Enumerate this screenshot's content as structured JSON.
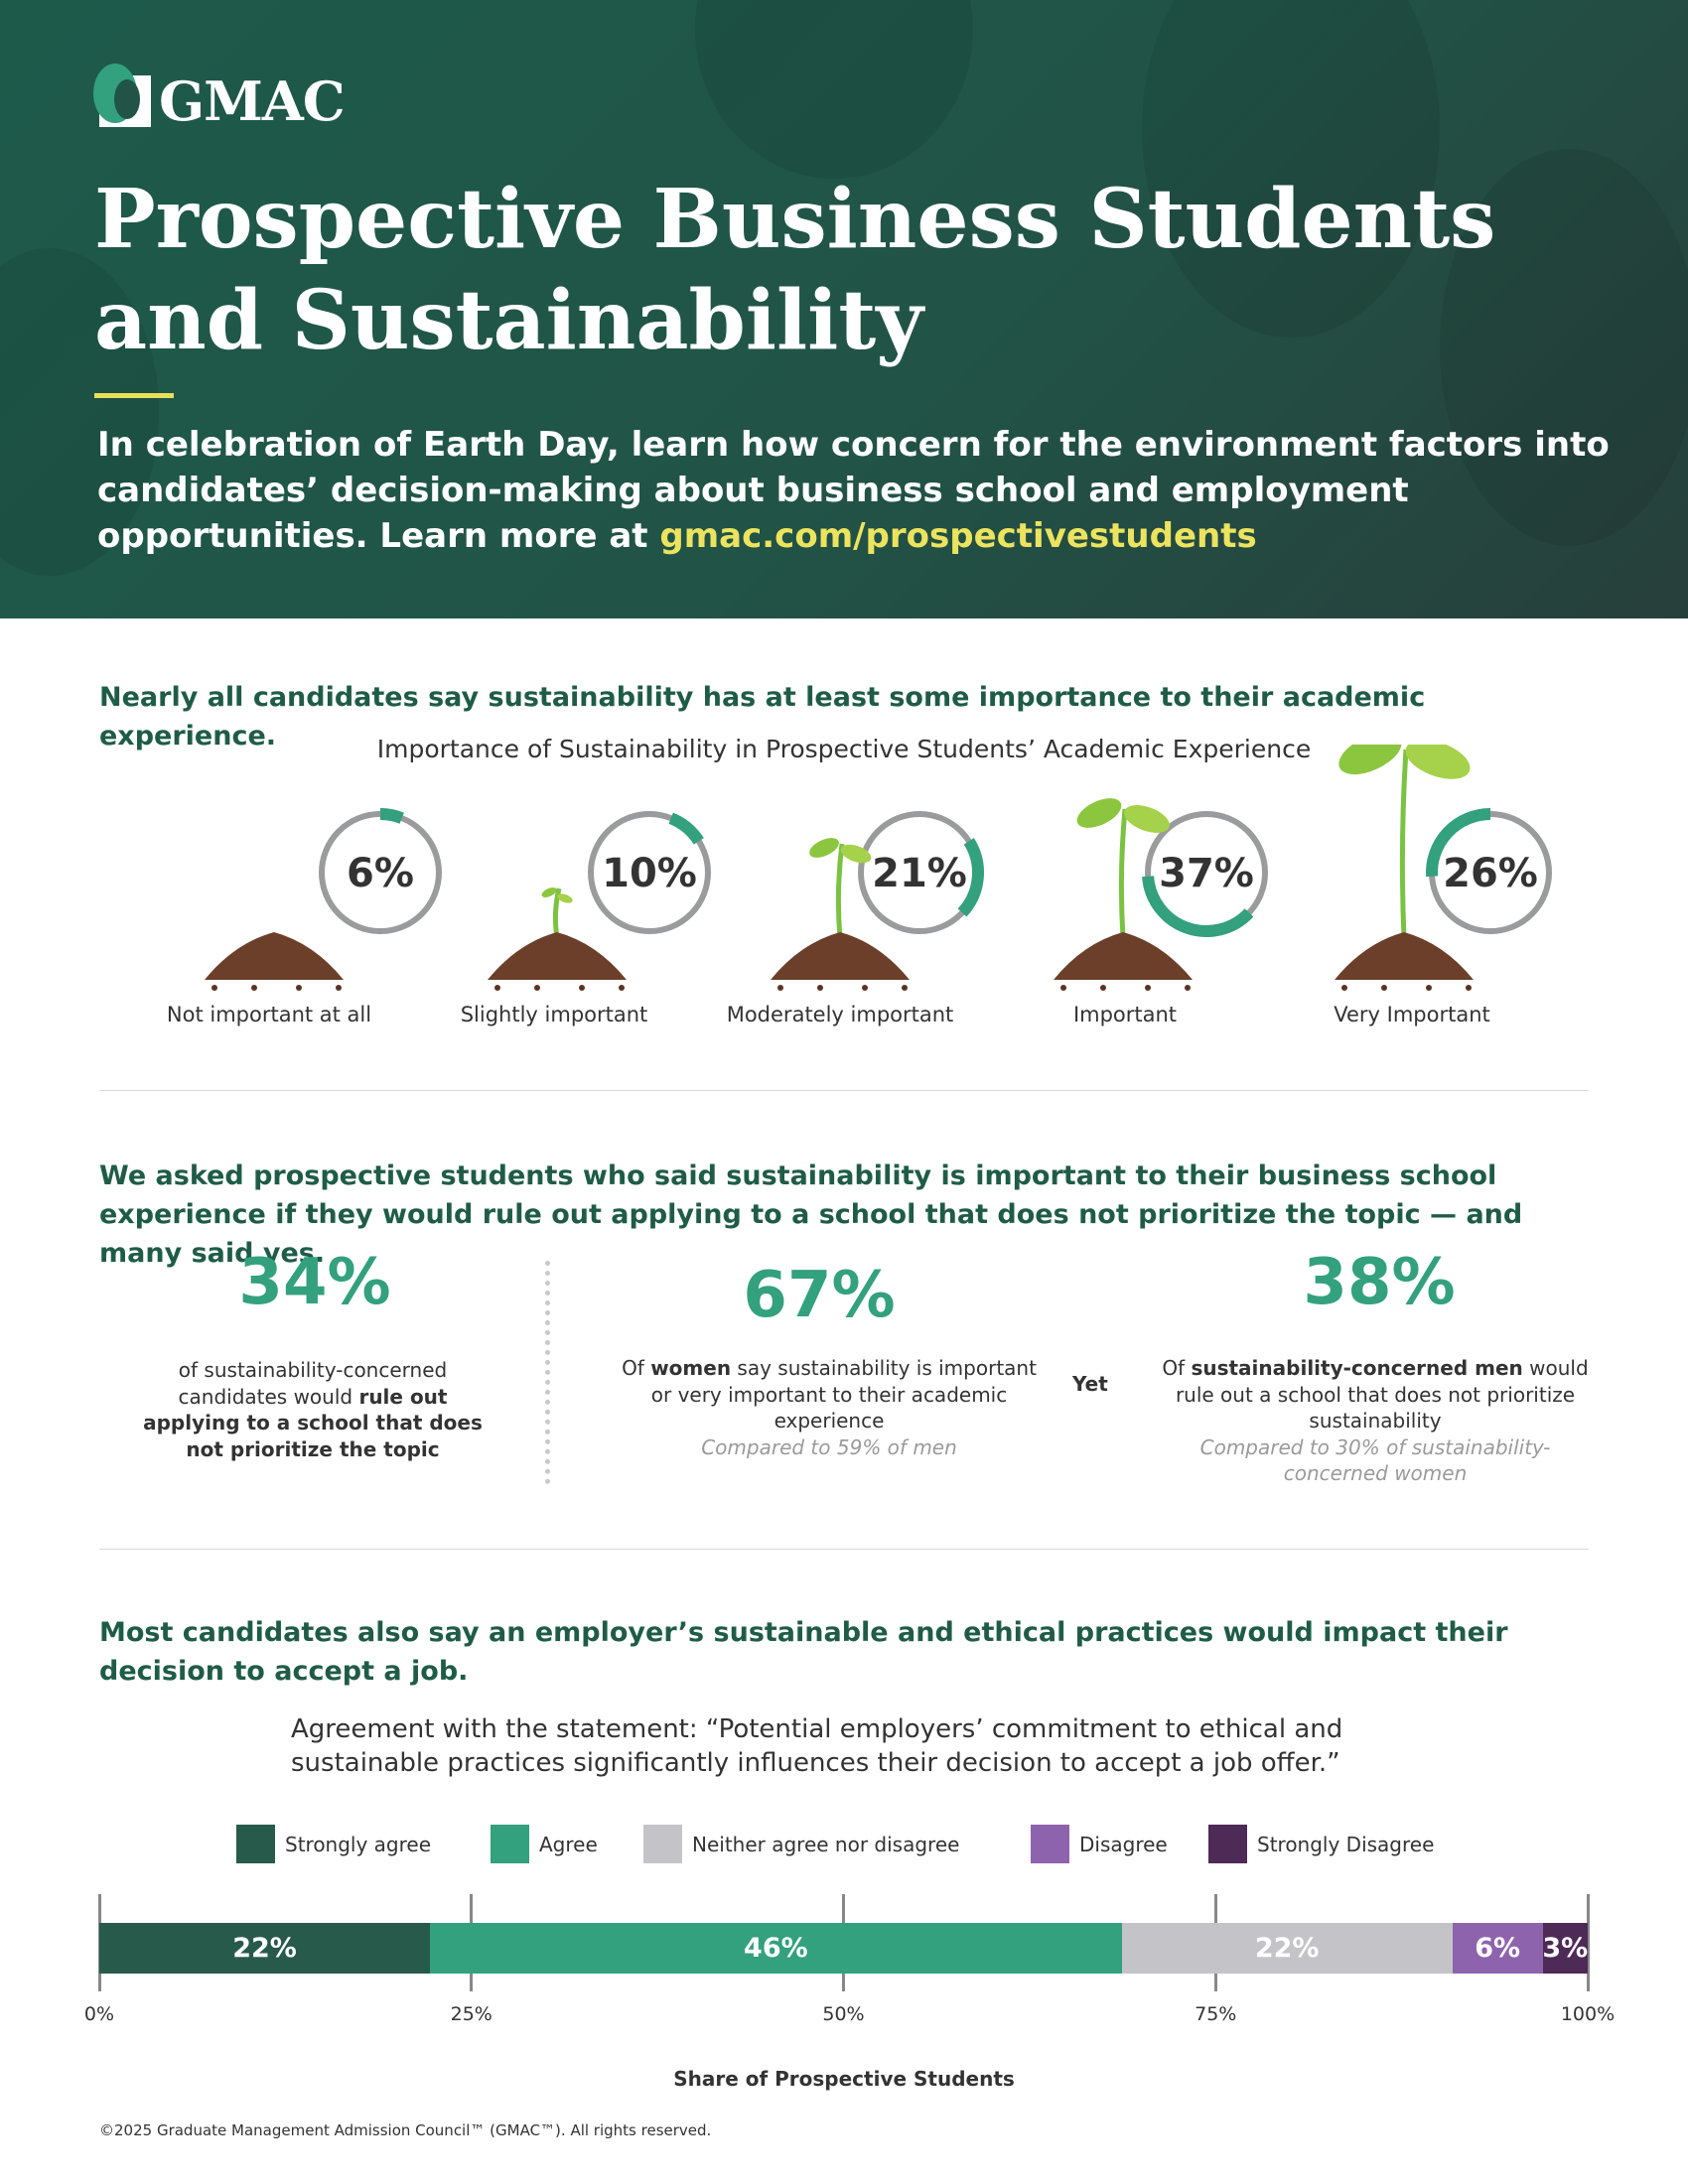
{
  "header": {
    "logo_text": "GMAC",
    "title_line1": "Prospective Business Students",
    "title_line2": "and Sustainability",
    "subtitle_text": "In celebration of Earth Day, learn how concern for the environment factors into candidates’ decision-making about business school and employment opportunities. Learn more at ",
    "subtitle_link": "gmac.com/prospectivestudents"
  },
  "section1": {
    "heading": "Nearly all candidates say sustainability has at least some importance to their academic experience.",
    "chart_title": "Importance of Sustainability in Prospective Students’ Academic Experience"
  },
  "chart_data": [
    {
      "type": "donut",
      "title": "Importance of Sustainability in Prospective Students’ Academic Experience",
      "categories": [
        "Not important at all",
        "Slightly important",
        "Moderately important",
        "Important",
        "Very Important"
      ],
      "values": [
        6,
        10,
        21,
        37,
        26
      ],
      "labels": [
        "6%",
        "10%",
        "21%",
        "37%",
        "26%"
      ],
      "colors": {
        "arc": "#33a07e",
        "track": "#9a9b9d"
      }
    },
    {
      "type": "bar",
      "orientation": "horizontal-stacked",
      "title": "Agreement with the statement: “Potential employers’ commitment to ethical and sustainable practices significantly influences their decision to accept a job offer.”",
      "xlabel": "Share of Prospective Students",
      "xlim": [
        0,
        100
      ],
      "xticks": [
        "0%",
        "25%",
        "50%",
        "75%",
        "100%"
      ],
      "legend_position": "top",
      "series": [
        {
          "name": "Strongly agree",
          "value": 22,
          "label": "22%",
          "color": "#275a4a"
        },
        {
          "name": "Agree",
          "value": 46,
          "label": "46%",
          "color": "#33a07e"
        },
        {
          "name": "Neither agree nor disagree",
          "value": 22,
          "label": "22%",
          "color": "#c4c4c8"
        },
        {
          "name": "Disagree",
          "value": 6,
          "label": "6%",
          "color": "#8e63ad"
        },
        {
          "name": "Strongly Disagree",
          "value": 3,
          "label": "3%",
          "color": "#4e2a57"
        }
      ]
    }
  ],
  "section2": {
    "heading": "We asked prospective students who said sustainability is important to their business school experience if they would rule out applying to a school that does not prioritize the topic — and many said yes.",
    "stat1": {
      "value": "34%",
      "t1": "of sustainability-concerned candidates would ",
      "b1": "rule out applying to a school that does not prioritize the topic"
    },
    "stat2": {
      "value": "67%",
      "t1": "Of ",
      "b1": "women",
      "t2": " say sustainability is important or very important to their academic experience",
      "note": "Compared to 59% of men"
    },
    "yet": "Yet",
    "stat3": {
      "value": "38%",
      "t1": "Of ",
      "b1": "sustainability-concerned men",
      "t2": " would rule out a school that does not prioritize sustainability",
      "note": "Compared to 30% of sustainability-concerned women"
    }
  },
  "section3": {
    "heading": "Most candidates also say an employer’s sustainable and ethical practices would impact their decision to accept a job.",
    "statement": "Agreement with the statement: “Potential employers’ commitment to ethical and sustainable practices significantly influences their decision to accept a job offer.”"
  },
  "footer": "©2025 Graduate Management Admission Council™ (GMAC™). All rights reserved."
}
